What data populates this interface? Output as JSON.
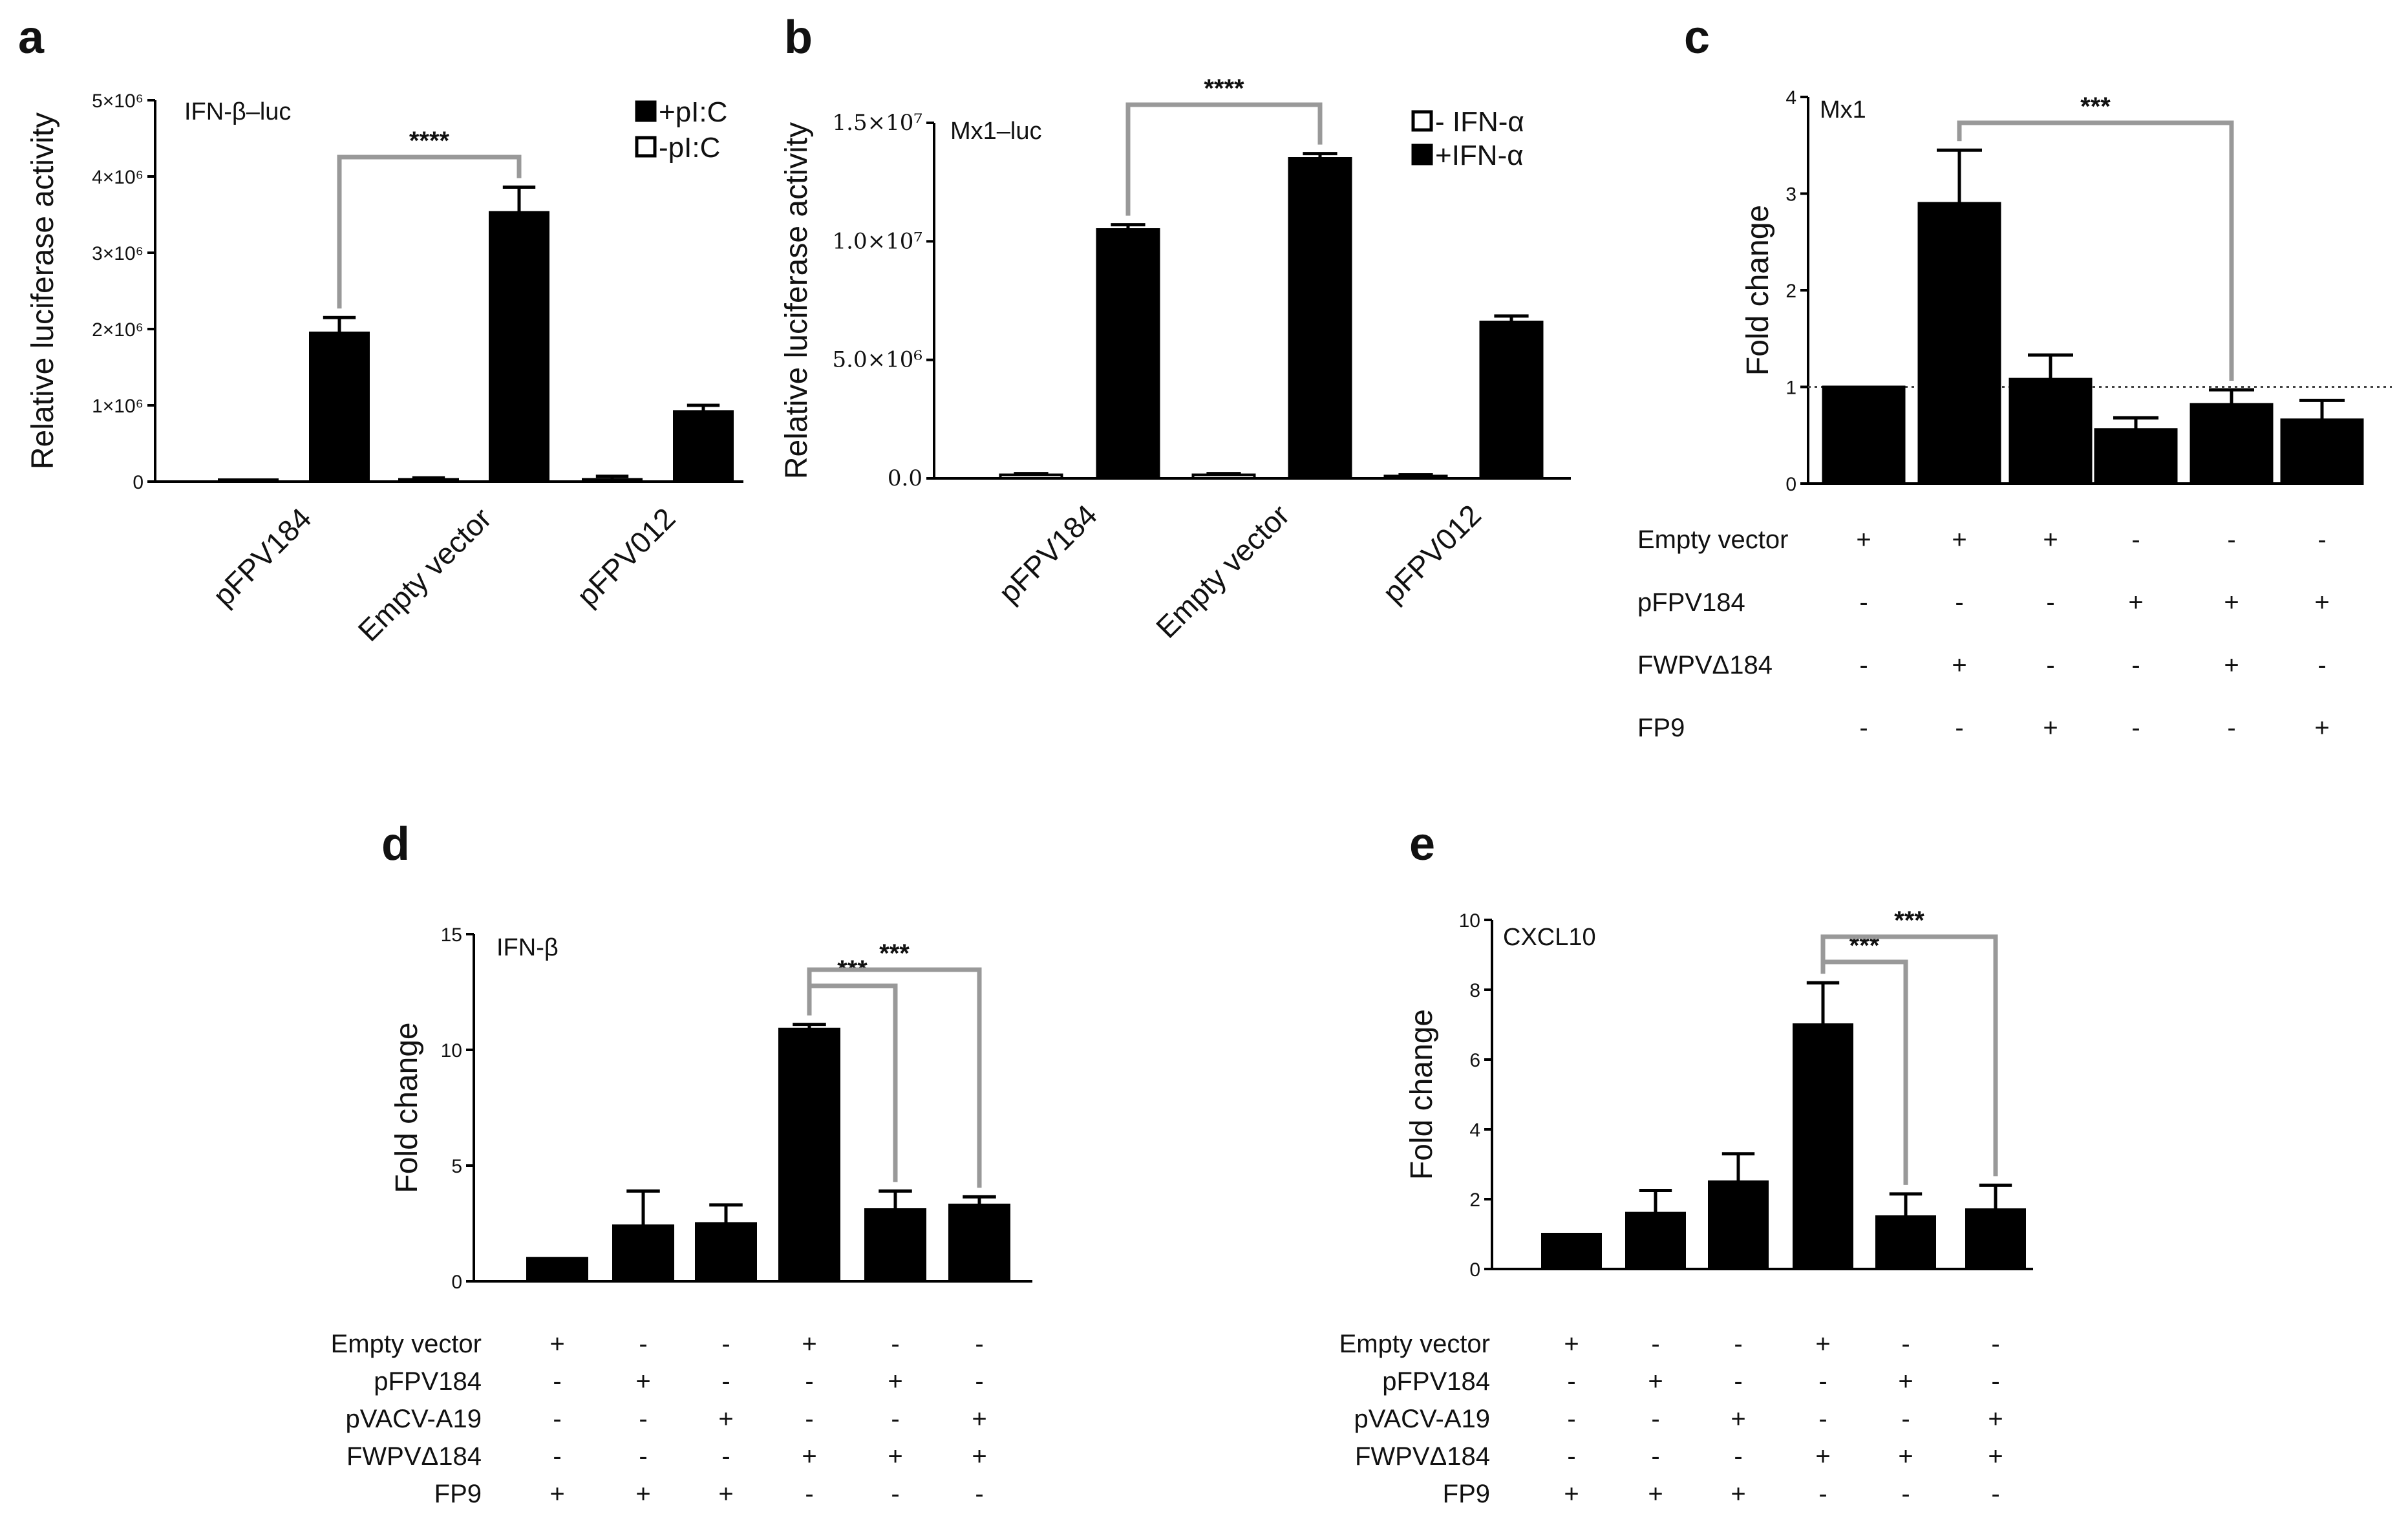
{
  "colors": {
    "bar": "#000000",
    "bracket": "#999999",
    "axis": "#000000"
  },
  "chart_data": [
    {
      "panel": "a",
      "type": "bar",
      "annotation": "IFN-β–luc",
      "ylabel": "Relative luciferase activity",
      "ylim": [
        0,
        5000000
      ],
      "yticks": [
        0,
        1000000,
        2000000,
        3000000,
        4000000,
        5000000
      ],
      "yticklabels": [
        "0",
        "1×10⁶",
        "2×10⁶",
        "3×10⁶",
        "4×10⁶",
        "5×10⁶"
      ],
      "categories": [
        "pFPV184",
        "Empty vector",
        "pFPV012"
      ],
      "series": [
        {
          "name": "-pI:C",
          "values": [
            10000,
            30000,
            30000
          ],
          "errors": [
            10000,
            20000,
            40000
          ]
        },
        {
          "name": "+pI:C",
          "values": [
            1950000,
            3530000,
            920000
          ],
          "errors": [
            200000,
            330000,
            80000
          ]
        }
      ],
      "legend": [
        {
          "label": "+pI:C",
          "filled": true
        },
        {
          "label": "-pI:C",
          "filled": false
        }
      ],
      "legend_position": "top-right",
      "significance": [
        {
          "from": "pFPV184:+pI:C",
          "to": "Empty vector:+pI:C",
          "label": "****"
        }
      ]
    },
    {
      "panel": "b",
      "type": "bar",
      "annotation": "Mx1–luc",
      "ylabel": "Relative luciferase activity",
      "ylim": [
        0,
        15000000
      ],
      "yticks": [
        0,
        5000000,
        10000000,
        15000000
      ],
      "yticklabels": [
        "0.0",
        "5.0×10⁶",
        "1.0×10⁷",
        "1.5×10⁷"
      ],
      "categories": [
        "pFPV184",
        "Empty vector",
        "pFPV012"
      ],
      "series": [
        {
          "name": "- IFN-α",
          "values": [
            150000,
            150000,
            100000
          ],
          "errors": [
            50000,
            50000,
            50000
          ]
        },
        {
          "name": "+IFN-α",
          "values": [
            10500000,
            13500000,
            6600000
          ],
          "errors": [
            200000,
            200000,
            250000
          ]
        }
      ],
      "legend": [
        {
          "label": "- IFN-α",
          "filled": false
        },
        {
          "label": "+IFN-α",
          "filled": true
        }
      ],
      "legend_position": "top-right",
      "significance": [
        {
          "from": "pFPV184:+IFN-α",
          "to": "Empty vector:+IFN-α",
          "label": "****"
        }
      ]
    },
    {
      "panel": "c",
      "type": "bar",
      "annotation": "Mx1",
      "ylabel": "Fold change",
      "ylim": [
        0,
        4
      ],
      "yticks": [
        0,
        1,
        2,
        3,
        4
      ],
      "yticklabels": [
        "0",
        "1",
        "2",
        "3",
        "4"
      ],
      "reference_line": 1,
      "values": [
        1.0,
        2.9,
        1.08,
        0.56,
        0.82,
        0.66
      ],
      "errors": [
        0,
        0.55,
        0.25,
        0.12,
        0.15,
        0.2
      ],
      "conditions": [
        {
          "label": "Empty vector",
          "signs": [
            "+",
            "+",
            "+",
            "-",
            "-",
            "-"
          ]
        },
        {
          "label": "pFPV184",
          "signs": [
            "-",
            "-",
            "-",
            "+",
            "+",
            "+"
          ]
        },
        {
          "label": "FWPVΔ184",
          "signs": [
            "-",
            "+",
            "-",
            "-",
            "+",
            "-"
          ]
        },
        {
          "label": "FP9",
          "signs": [
            "-",
            "-",
            "+",
            "-",
            "-",
            "+"
          ]
        }
      ],
      "significance": [
        {
          "from": 1,
          "to": 4,
          "label": "***"
        }
      ]
    },
    {
      "panel": "d",
      "type": "bar",
      "annotation": "IFN-β",
      "ylabel": "Fold change",
      "ylim": [
        0,
        15
      ],
      "yticks": [
        0,
        5,
        10,
        15
      ],
      "yticklabels": [
        "0",
        "5",
        "10",
        "15"
      ],
      "values": [
        1.0,
        2.4,
        2.5,
        10.9,
        3.1,
        3.3
      ],
      "errors": [
        0,
        1.5,
        0.8,
        0.2,
        0.8,
        0.35
      ],
      "conditions": [
        {
          "label": "Empty vector",
          "signs": [
            "+",
            "-",
            "-",
            "+",
            "-",
            "-"
          ]
        },
        {
          "label": "pFPV184",
          "signs": [
            "-",
            "+",
            "-",
            "-",
            "+",
            "-"
          ]
        },
        {
          "label": "pVACV-A19",
          "signs": [
            "-",
            "-",
            "+",
            "-",
            "-",
            "+"
          ]
        },
        {
          "label": "FWPVΔ184",
          "signs": [
            "-",
            "-",
            "-",
            "+",
            "+",
            "+"
          ]
        },
        {
          "label": "FP9",
          "signs": [
            "+",
            "+",
            "+",
            "-",
            "-",
            "-"
          ]
        }
      ],
      "significance": [
        {
          "from": 3,
          "to": 4,
          "label": "***"
        },
        {
          "from": 3,
          "to": 5,
          "label": "***"
        }
      ]
    },
    {
      "panel": "e",
      "type": "bar",
      "annotation": "CXCL10",
      "ylabel": "Fold change",
      "ylim": [
        0,
        10
      ],
      "yticks": [
        0,
        2,
        4,
        6,
        8,
        10
      ],
      "yticklabels": [
        "0",
        "2",
        "4",
        "6",
        "8",
        "10"
      ],
      "values": [
        1.0,
        1.6,
        2.5,
        7.0,
        1.5,
        1.7
      ],
      "errors": [
        0,
        0.65,
        0.8,
        1.2,
        0.65,
        0.7
      ],
      "conditions": [
        {
          "label": "Empty vector",
          "signs": [
            "+",
            "-",
            "-",
            "+",
            "-",
            "-"
          ]
        },
        {
          "label": "pFPV184",
          "signs": [
            "-",
            "+",
            "-",
            "-",
            "+",
            "-"
          ]
        },
        {
          "label": "pVACV-A19",
          "signs": [
            "-",
            "-",
            "+",
            "-",
            "-",
            "+"
          ]
        },
        {
          "label": "FWPVΔ184",
          "signs": [
            "-",
            "-",
            "-",
            "+",
            "+",
            "+"
          ]
        },
        {
          "label": "FP9",
          "signs": [
            "+",
            "+",
            "+",
            "-",
            "-",
            "-"
          ]
        }
      ],
      "significance": [
        {
          "from": 3,
          "to": 4,
          "label": "***"
        },
        {
          "from": 3,
          "to": 5,
          "label": "***"
        }
      ]
    }
  ]
}
